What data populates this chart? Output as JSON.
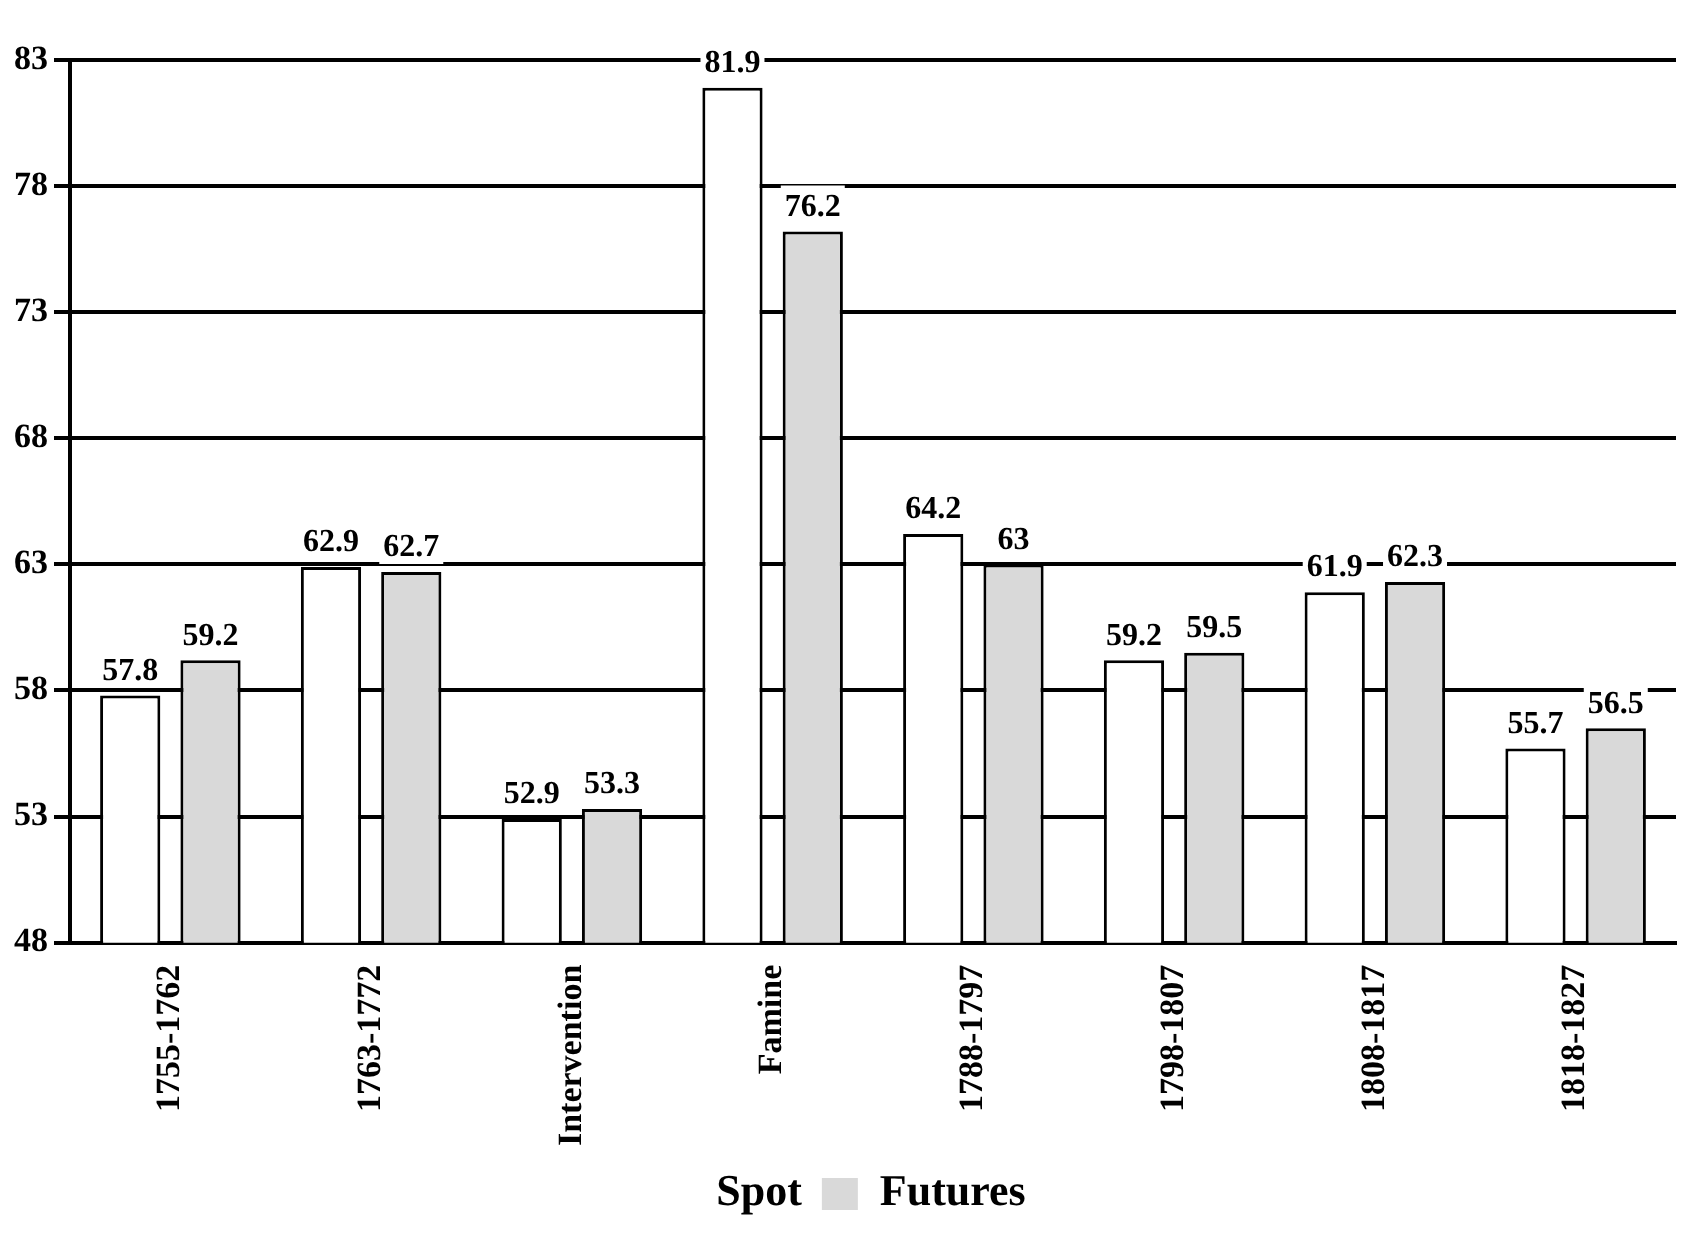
{
  "chart_data": {
    "type": "bar",
    "categories": [
      "1755-1762",
      "1763-1772",
      "Intervention",
      "Famine",
      "1788-1797",
      "1798-1807",
      "1808-1817",
      "1818-1827"
    ],
    "series": [
      {
        "name": "Spot",
        "color": "#ffffff",
        "values": [
          57.8,
          62.9,
          52.9,
          81.9,
          64.2,
          59.2,
          61.9,
          55.7
        ]
      },
      {
        "name": "Futures",
        "color": "#d9d9d9",
        "values": [
          59.2,
          62.7,
          53.3,
          76.2,
          63,
          59.5,
          62.3,
          56.5
        ]
      }
    ],
    "ylim": [
      48,
      83
    ],
    "yticks": [
      48,
      53,
      58,
      63,
      68,
      73,
      78,
      83
    ],
    "grid": "y",
    "legend": "bottom",
    "data_labels": true
  }
}
